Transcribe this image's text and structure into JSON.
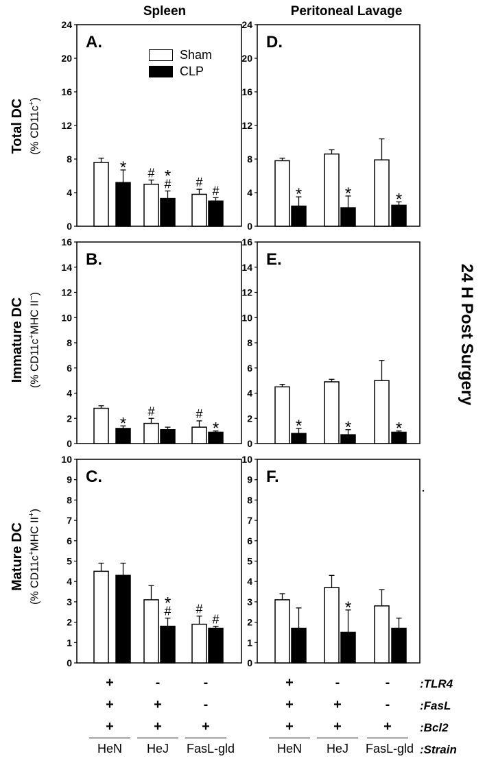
{
  "column_titles": [
    "Spleen",
    "Peritoneal Lavage"
  ],
  "side_title": "24 H Post Surgery",
  "legend": {
    "sham": "Sham",
    "clp": "CLP"
  },
  "row_labels": [
    {
      "main": "Total DC",
      "sub_pre": "(% CD11c",
      "sub_sup": "+",
      "sub_mid": ")",
      "sub_sup2": "",
      "sub_post": ""
    },
    {
      "main": "Immature DC",
      "sub_pre": "(% CD11c",
      "sub_sup": "+",
      "sub_mid": "MHC II",
      "sub_sup2": "−",
      "sub_post": ")"
    },
    {
      "main": "Mature DC",
      "sub_pre": "(% CD11c",
      "sub_sup": "+",
      "sub_mid": "MHC II",
      "sub_sup2": "+",
      "sub_post": ")"
    }
  ],
  "genotype_rows": {
    "labels": [
      ":TLR4",
      ":FasL",
      ":Bcl2",
      ":Strain"
    ],
    "tlr4": [
      "+",
      "-",
      "-"
    ],
    "fasl": [
      "+",
      "+",
      "-"
    ],
    "bcl2": [
      "+",
      "+",
      "+"
    ],
    "strains": [
      "HeN",
      "HeJ",
      "FasL-gld"
    ]
  },
  "chart_data": [
    {
      "type": "bar",
      "panel": "A.",
      "row": 0,
      "col": 0,
      "ylim": [
        0,
        24
      ],
      "yticks": [
        0,
        4,
        8,
        12,
        16,
        20,
        24
      ],
      "categories": [
        "HeN",
        "HeJ",
        "FasL-gld"
      ],
      "series": [
        {
          "name": "Sham",
          "values": [
            7.6,
            5.0,
            3.8
          ],
          "errors": [
            0.5,
            0.5,
            0.6
          ],
          "marks": [
            "",
            "#",
            "#"
          ]
        },
        {
          "name": "CLP",
          "values": [
            5.2,
            3.3,
            3.0
          ],
          "errors": [
            1.5,
            0.9,
            0.4
          ],
          "marks": [
            "*",
            "*#",
            "#"
          ]
        }
      ]
    },
    {
      "type": "bar",
      "panel": "D.",
      "row": 0,
      "col": 1,
      "ylim": [
        0,
        24
      ],
      "yticks": [
        0,
        4,
        8,
        12,
        16,
        20,
        24
      ],
      "categories": [
        "HeN",
        "HeJ",
        "FasL-gld"
      ],
      "series": [
        {
          "name": "Sham",
          "values": [
            7.8,
            8.6,
            7.9
          ],
          "errors": [
            0.3,
            0.5,
            2.5
          ],
          "marks": [
            "",
            "",
            ""
          ]
        },
        {
          "name": "CLP",
          "values": [
            2.4,
            2.2,
            2.5
          ],
          "errors": [
            1.1,
            1.4,
            0.4
          ],
          "marks": [
            "*",
            "*",
            "*"
          ]
        }
      ]
    },
    {
      "type": "bar",
      "panel": "B.",
      "row": 1,
      "col": 0,
      "ylim": [
        0,
        16
      ],
      "yticks": [
        0,
        2,
        4,
        6,
        8,
        10,
        12,
        14,
        16
      ],
      "categories": [
        "HeN",
        "HeJ",
        "FasL-gld"
      ],
      "series": [
        {
          "name": "Sham",
          "values": [
            2.8,
            1.6,
            1.3
          ],
          "errors": [
            0.2,
            0.4,
            0.5
          ],
          "marks": [
            "",
            "#",
            "#"
          ]
        },
        {
          "name": "CLP",
          "values": [
            1.2,
            1.1,
            0.9
          ],
          "errors": [
            0.2,
            0.2,
            0.1
          ],
          "marks": [
            "*",
            "",
            "*"
          ]
        }
      ]
    },
    {
      "type": "bar",
      "panel": "E.",
      "row": 1,
      "col": 1,
      "ylim": [
        0,
        16
      ],
      "yticks": [
        0,
        2,
        4,
        6,
        8,
        10,
        12,
        14,
        16
      ],
      "categories": [
        "HeN",
        "HeJ",
        "FasL-gld"
      ],
      "series": [
        {
          "name": "Sham",
          "values": [
            4.5,
            4.9,
            5.0
          ],
          "errors": [
            0.2,
            0.2,
            1.6
          ],
          "marks": [
            "",
            "",
            ""
          ]
        },
        {
          "name": "CLP",
          "values": [
            0.8,
            0.7,
            0.9
          ],
          "errors": [
            0.4,
            0.4,
            0.1
          ],
          "marks": [
            "*",
            "*",
            "*"
          ]
        }
      ]
    },
    {
      "type": "bar",
      "panel": "C.",
      "row": 2,
      "col": 0,
      "ylim": [
        0,
        10
      ],
      "yticks": [
        0,
        1,
        2,
        3,
        4,
        5,
        6,
        7,
        8,
        9,
        10
      ],
      "categories": [
        "HeN",
        "HeJ",
        "FasL-gld"
      ],
      "series": [
        {
          "name": "Sham",
          "values": [
            4.5,
            3.1,
            1.9
          ],
          "errors": [
            0.4,
            0.7,
            0.4
          ],
          "marks": [
            "",
            "",
            "#"
          ]
        },
        {
          "name": "CLP",
          "values": [
            4.3,
            1.8,
            1.7
          ],
          "errors": [
            0.6,
            0.4,
            0.1
          ],
          "marks": [
            "",
            "*#",
            "#"
          ]
        }
      ]
    },
    {
      "type": "bar",
      "panel": "F.",
      "row": 2,
      "col": 1,
      "ylim": [
        0,
        10
      ],
      "yticks": [
        0,
        1,
        2,
        3,
        4,
        5,
        6,
        7,
        8,
        9,
        10
      ],
      "categories": [
        "HeN",
        "HeJ",
        "FasL-gld"
      ],
      "series": [
        {
          "name": "Sham",
          "values": [
            3.1,
            3.7,
            2.8
          ],
          "errors": [
            0.3,
            0.6,
            0.8
          ],
          "marks": [
            "",
            "",
            ""
          ]
        },
        {
          "name": "CLP",
          "values": [
            1.7,
            1.5,
            1.7
          ],
          "errors": [
            1.0,
            1.1,
            0.5
          ],
          "marks": [
            "",
            "*",
            ""
          ]
        }
      ]
    }
  ]
}
